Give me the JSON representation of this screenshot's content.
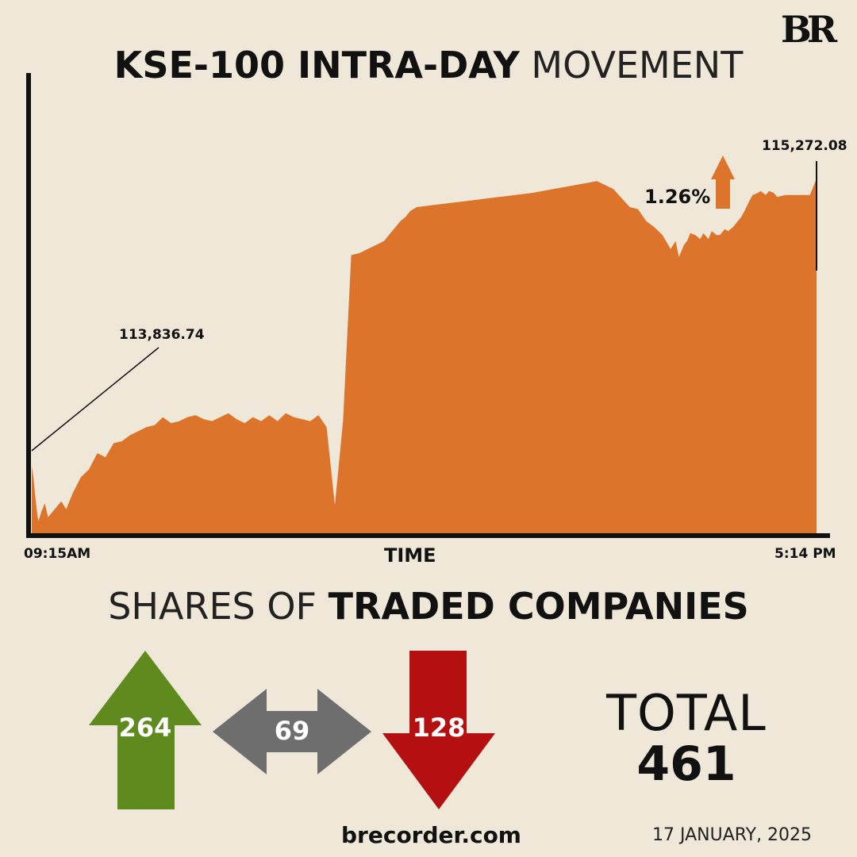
{
  "logo_text": "BR",
  "header": {
    "title_bold": "KSE-100 INTRA-DAY",
    "title_light": " MOVEMENT"
  },
  "chart_data": {
    "type": "area",
    "title": "KSE-100 INTRA-DAY MOVEMENT",
    "xlabel": "TIME",
    "ylabel": "",
    "x_start_label": "09:15AM",
    "x_end_label": "5:14 PM",
    "open_label": "113,836.74",
    "close_label": "115,272.08",
    "change_label": "1.26%",
    "change_direction": "up",
    "x_range": [
      "09:15",
      "17:14"
    ],
    "ylim": [
      113500,
      115800
    ],
    "series": [
      {
        "x": [
          "09:15",
          "09:16",
          "09:17",
          "09:18",
          "09:19",
          "09:21",
          "09:23",
          "09:25",
          "09:28",
          "09:30",
          "09:33",
          "09:36",
          "09:40",
          "09:45",
          "09:50",
          "09:55",
          "10:00",
          "10:05",
          "10:10",
          "10:15",
          "10:20",
          "10:25",
          "10:30",
          "10:35",
          "10:40",
          "10:45",
          "10:50",
          "10:55",
          "11:00",
          "11:05",
          "11:10",
          "11:15",
          "11:20",
          "11:25",
          "11:30",
          "11:35",
          "11:40",
          "11:45",
          "11:50",
          "11:55",
          "12:00",
          "12:05",
          "12:10",
          "12:15",
          "12:20",
          "12:25",
          "12:30",
          "12:35",
          "12:40",
          "12:45",
          "12:50",
          "12:52",
          "12:55",
          "12:57",
          "13:00",
          "13:03",
          "13:06",
          "13:10",
          "13:20",
          "13:40",
          "14:00",
          "14:20",
          "14:40",
          "15:00",
          "15:10",
          "15:20",
          "15:25",
          "15:30",
          "15:35",
          "15:40",
          "15:45",
          "15:48",
          "15:50",
          "15:53",
          "15:55",
          "15:57",
          "16:00",
          "16:03",
          "16:05",
          "16:08",
          "16:10",
          "16:13",
          "16:15",
          "16:18",
          "16:20",
          "16:23",
          "16:25",
          "16:28",
          "16:30",
          "16:33",
          "16:35",
          "16:38",
          "16:40",
          "16:43",
          "16:45",
          "16:48",
          "16:50",
          "16:55",
          "17:00",
          "17:05",
          "17:10",
          "17:14"
        ],
        "y": [
          113836,
          113780,
          113700,
          113620,
          113560,
          113610,
          113650,
          113580,
          113610,
          113630,
          113660,
          113620,
          113700,
          113780,
          113820,
          113900,
          113880,
          113950,
          113960,
          113990,
          114010,
          114030,
          114040,
          114080,
          114050,
          114060,
          114080,
          114090,
          114070,
          114060,
          114080,
          114100,
          114070,
          114050,
          114080,
          114060,
          114090,
          114060,
          114100,
          114080,
          114070,
          114060,
          114090,
          114030,
          113640,
          114060,
          114890,
          114900,
          114920,
          114940,
          114960,
          114980,
          115010,
          115030,
          115060,
          115080,
          115110,
          115130,
          115140,
          115160,
          115180,
          115200,
          115230,
          115260,
          115220,
          115130,
          115120,
          115060,
          115030,
          114990,
          114920,
          114960,
          114880,
          114940,
          114960,
          115000,
          114990,
          114970,
          115000,
          114970,
          115010,
          114990,
          114990,
          115020,
          115010,
          115030,
          115050,
          115080,
          115110,
          115160,
          115190,
          115200,
          115210,
          115190,
          115210,
          115200,
          115180,
          115190,
          115190,
          115190,
          115190,
          115272
        ]
      }
    ]
  },
  "shares": {
    "title_light": "SHARES OF ",
    "title_bold": "TRADED COMPANIES",
    "advanced": "264",
    "unchanged": "69",
    "declined": "128",
    "total_label": "TOTAL",
    "total_value": "461"
  },
  "colors": {
    "background": "#efe7d7",
    "area": "#dc742c",
    "up_arrow": "#5e8a1e",
    "neutral_arrow": "#6e6e6e",
    "down_arrow": "#b51011"
  },
  "footer": {
    "site": "brecorder.com",
    "date": "17 JANUARY, 2025"
  }
}
